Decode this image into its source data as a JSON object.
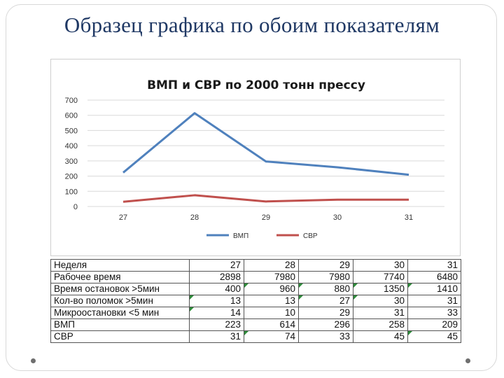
{
  "slide": {
    "title": "Образец графика по обоим показателям"
  },
  "chart_data": {
    "type": "line",
    "title": "ВМП и СВР по 2000 тонн прессу",
    "categories": [
      "27",
      "28",
      "29",
      "30",
      "31"
    ],
    "ylim": [
      0,
      700
    ],
    "yticks": [
      0,
      100,
      200,
      300,
      400,
      500,
      600,
      700
    ],
    "grid": true,
    "legend_position": "bottom",
    "series": [
      {
        "name": "ВМП",
        "color": "#4f81bd",
        "values": [
          223,
          614,
          296,
          258,
          209
        ]
      },
      {
        "name": "СВР",
        "color": "#c0504d",
        "values": [
          31,
          74,
          33,
          45,
          45
        ]
      }
    ]
  },
  "table": {
    "rows": [
      {
        "label": "Неделя",
        "values": [
          "27",
          "28",
          "29",
          "30",
          "31"
        ],
        "flags": [
          false,
          false,
          false,
          false,
          false
        ]
      },
      {
        "label": "Рабочее время",
        "values": [
          "2898",
          "7980",
          "7980",
          "7740",
          "6480"
        ],
        "flags": [
          false,
          false,
          false,
          false,
          false
        ]
      },
      {
        "label": "Время остановок >5мин",
        "values": [
          "400",
          "960",
          "880",
          "1350",
          "1410"
        ],
        "flags": [
          false,
          true,
          true,
          true,
          true
        ]
      },
      {
        "label": "Кол-во поломок >5мин",
        "values": [
          "13",
          "13",
          "27",
          "30",
          "31"
        ],
        "flags": [
          true,
          false,
          true,
          true,
          false
        ]
      },
      {
        "label": "Микроостановки <5 мин",
        "values": [
          "14",
          "10",
          "29",
          "31",
          "33"
        ],
        "flags": [
          true,
          false,
          false,
          false,
          false
        ]
      },
      {
        "label": "ВМП",
        "values": [
          "223",
          "614",
          "296",
          "258",
          "209"
        ],
        "flags": [
          false,
          false,
          false,
          false,
          false
        ]
      },
      {
        "label": "СВР",
        "values": [
          "31",
          "74",
          "33",
          "45",
          "45"
        ],
        "flags": [
          false,
          true,
          false,
          false,
          true
        ]
      }
    ]
  }
}
